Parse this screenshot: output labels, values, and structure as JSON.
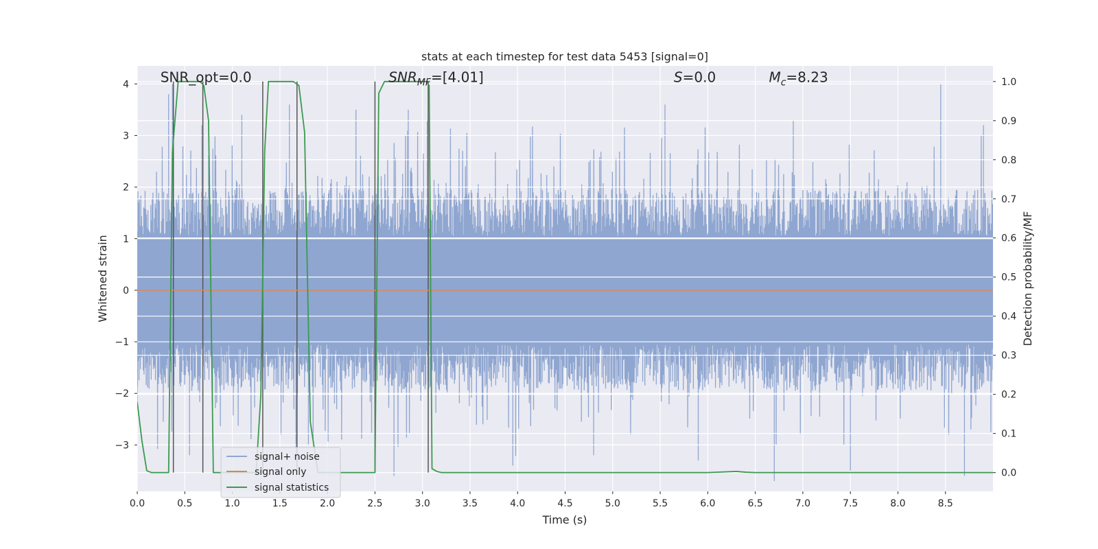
{
  "chart_data": {
    "type": "line",
    "title": "stats at each timestep for test data 5453 [signal=0]",
    "xlabel": "Time (s)",
    "ylabel": "Whitened strain",
    "ylabel_right": "Detection probability/MF",
    "xlim": [
      0.0,
      9.0
    ],
    "ylim": [
      -3.9,
      4.35
    ],
    "ylim_right": [
      -0.048,
      1.04
    ],
    "x_ticks": [
      0.0,
      0.5,
      1.0,
      1.5,
      2.0,
      2.5,
      3.0,
      3.5,
      4.0,
      4.5,
      5.0,
      5.5,
      6.0,
      6.5,
      7.0,
      7.5,
      8.0,
      8.5
    ],
    "x_tick_labels": [
      "0.0",
      "0.5",
      "1.0",
      "1.5",
      "2.0",
      "2.5",
      "3.0",
      "3.5",
      "4.0",
      "4.5",
      "5.0",
      "5.5",
      "6.0",
      "6.5",
      "7.0",
      "7.5",
      "8.0",
      "8.5"
    ],
    "y_ticks": [
      -3,
      -2,
      -1,
      0,
      1,
      2,
      3,
      4
    ],
    "y_tick_labels": [
      "−3",
      "−2",
      "−1",
      "0",
      "1",
      "2",
      "3",
      "4"
    ],
    "y_ticks_right": [
      0.0,
      0.1,
      0.2,
      0.3,
      0.4,
      0.5,
      0.6,
      0.7,
      0.8,
      0.9,
      1.0
    ],
    "y_tick_labels_right": [
      "0.0",
      "0.1",
      "0.2",
      "0.3",
      "0.4",
      "0.5",
      "0.6",
      "0.7",
      "0.8",
      "0.9",
      "1.0"
    ],
    "grid": true,
    "legend_position": "lower-left",
    "annotations": [
      {
        "text": "SNR_opt=0.0",
        "x": 0.2,
        "y": 4.05
      },
      {
        "text": "SNR",
        "sub": "MF",
        "rest": "=[4.01]",
        "italic": true,
        "x": 2.6,
        "y": 4.05
      },
      {
        "text": "S",
        "rest": "=0.0",
        "italic": true,
        "x": 5.6,
        "y": 4.05
      },
      {
        "text": "M",
        "sub": "c",
        "rest": "=8.23",
        "italic": true,
        "x": 6.6,
        "y": 4.05
      }
    ],
    "vertical_lines": [
      0.38,
      0.69,
      1.32,
      1.68,
      2.5,
      3.06
    ],
    "series": [
      {
        "name": "signal+ noise",
        "color": "#8fa6d0",
        "axis": "left",
        "style": "noise",
        "peaks": [
          [
            0.33,
            3.8
          ],
          [
            0.37,
            4.0
          ],
          [
            0.68,
            3.2
          ],
          [
            1.1,
            3.4
          ],
          [
            1.6,
            3.6
          ],
          [
            2.3,
            3.5
          ],
          [
            2.85,
            3.5
          ],
          [
            3.05,
            3.3
          ],
          [
            5.55,
            3.6
          ],
          [
            6.9,
            3.3
          ],
          [
            8.45,
            4.0
          ],
          [
            8.9,
            3.2
          ]
        ],
        "troughs": [
          [
            0.0,
            -2.2
          ],
          [
            0.55,
            -3.2
          ],
          [
            1.8,
            -3.0
          ],
          [
            2.7,
            -3.6
          ],
          [
            3.95,
            -3.4
          ],
          [
            4.8,
            -3.2
          ],
          [
            5.9,
            -3.3
          ],
          [
            6.7,
            -3.7
          ],
          [
            7.5,
            -3.5
          ],
          [
            8.7,
            -3.6
          ]
        ]
      },
      {
        "name": "signal only",
        "color": "#dd8452",
        "axis": "left",
        "x": [
          0.0,
          9.0
        ],
        "y": [
          0.0,
          0.0
        ]
      },
      {
        "name": "signal statistics",
        "color": "#3a9a4e",
        "axis": "right",
        "x": [
          0.0,
          0.05,
          0.1,
          0.15,
          0.3,
          0.33,
          0.37,
          0.43,
          0.5,
          0.66,
          0.7,
          0.75,
          0.8,
          0.85,
          1.25,
          1.3,
          1.34,
          1.38,
          1.42,
          1.6,
          1.64,
          1.7,
          1.76,
          1.82,
          1.9,
          2.45,
          2.5,
          2.54,
          2.6,
          2.65,
          3.0,
          3.04,
          3.07,
          3.1,
          3.15,
          3.2,
          6.0,
          6.3,
          6.4,
          6.5,
          9.0
        ],
        "y": [
          0.18,
          0.08,
          0.005,
          0.0,
          0.0,
          0.0,
          0.82,
          1.0,
          1.0,
          1.0,
          0.99,
          0.9,
          0.0,
          0.0,
          0.0,
          0.2,
          0.82,
          1.0,
          1.0,
          1.0,
          1.0,
          0.99,
          0.87,
          0.13,
          0.0,
          0.0,
          0.0,
          0.97,
          1.0,
          1.0,
          1.0,
          1.0,
          0.99,
          0.01,
          0.003,
          0.0,
          0.0,
          0.003,
          0.001,
          0.0,
          0.0
        ]
      }
    ]
  }
}
